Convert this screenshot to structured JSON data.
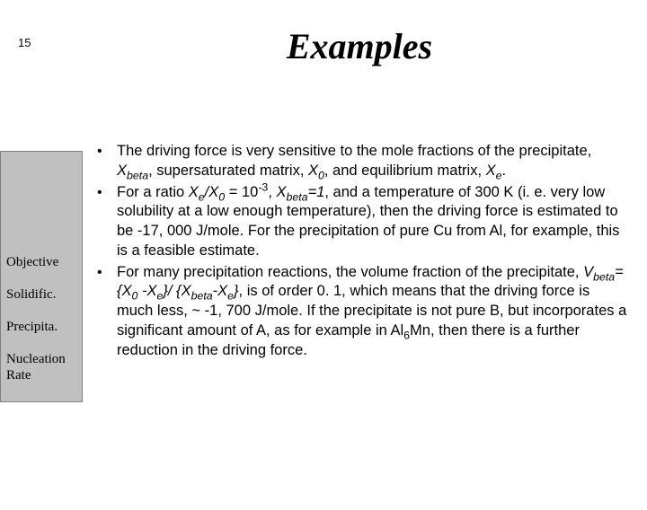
{
  "page_number": "15",
  "title": "Examples",
  "sidebar": {
    "items": [
      {
        "label": "Objective"
      },
      {
        "label": "Solidific."
      },
      {
        "label": "Precipita."
      },
      {
        "label": "Nucleation Rate"
      }
    ]
  },
  "bullets": [
    {
      "html": "The driving force is very sensitive to the mole fractions of the precipitate, <span class='it'>X<sub>beta</sub></span>, supersaturated matrix, <span class='it'>X<sub>0</sub></span>, and equilibrium matrix, <span class='it'>X<sub>e</sub></span>."
    },
    {
      "html": "For a ratio <span class='it'>X<sub>e</sub>/X<sub>0</sub></span> = 10<sup>-3</sup>, <span class='it'>X<sub>beta</sub>=1</span>, and a temperature of 300 K (i. e. very low solubility at a low enough temperature), then the driving force is estimated to be -17, 000 J/mole.  For the precipitation of pure Cu from Al, for example, this is a feasible estimate."
    },
    {
      "html": "For many precipitation reactions, the volume fraction of the precipitate, <span class='it'>V<sub>beta</sub>= {X<sub>0</sub> -X<sub>e</sub>}/ {X<sub>beta</sub>-X<sub>e</sub>}</span>, is of order 0. 1, which means that the driving force is much less, ~ -1, 700 J/mole.  If the precipitate is not pure B, but incorporates a significant amount of A, as for example in Al<sub>6</sub>Mn, then there is a further reduction in the driving force."
    }
  ],
  "colors": {
    "background": "#ffffff",
    "text": "#000000",
    "sidebar_bg": "#c0c0c0",
    "sidebar_border": "#808080"
  },
  "typography": {
    "title_font": "Times New Roman",
    "title_size_pt": 40,
    "title_style": "italic",
    "body_font": "Arial",
    "body_size_pt": 16.5,
    "sidebar_font": "Times New Roman",
    "sidebar_size_pt": 15
  }
}
